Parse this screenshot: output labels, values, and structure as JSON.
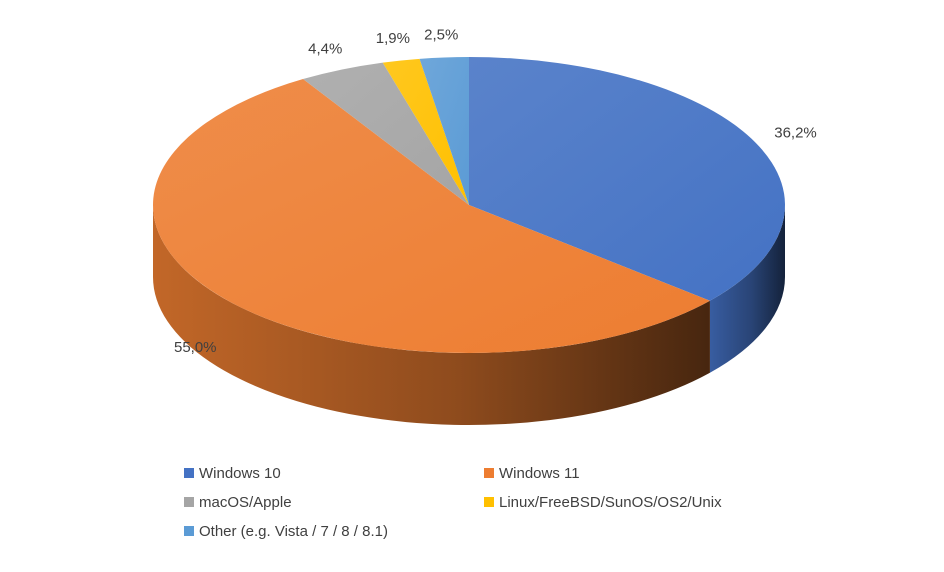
{
  "chart_data": {
    "type": "pie",
    "style": "3d",
    "title": "",
    "labels": [
      "Windows 10",
      "Windows 11",
      "macOS/Apple",
      "Linux/FreeBSD/SunOS/OS2/Unix",
      "Other (e.g. Vista / 7 / 8 / 8.1)"
    ],
    "values": [
      36.2,
      55.0,
      4.4,
      1.9,
      2.5
    ],
    "value_labels": [
      "36,2%",
      "55,0%",
      "4,4%",
      "1,9%",
      "2,5%"
    ],
    "colors": [
      "#4472C4",
      "#ED7D31",
      "#A5A5A5",
      "#FFC000",
      "#5B9BD5"
    ],
    "legend": "bottom"
  }
}
